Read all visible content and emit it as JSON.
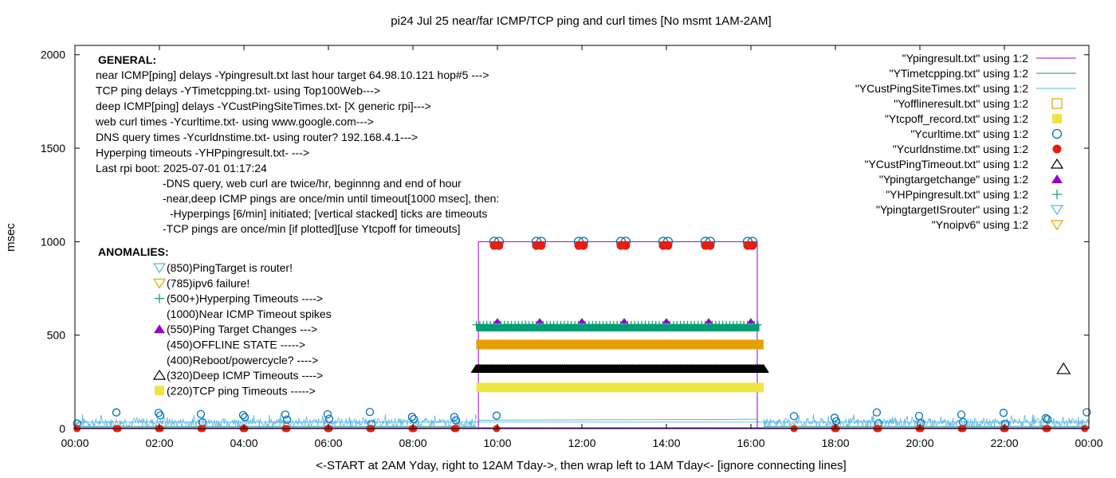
{
  "chart_data": {
    "type": "line",
    "title": "pi24 Jul 25  near/far ICMP/TCP ping and curl times [No msmt 1AM-2AM]",
    "xlabel": "<-START at 2AM Yday, right to 12AM Tday->, then wrap left to 1AM Tday<- [ignore connecting lines]",
    "ylabel": "msec",
    "xlim": [
      0,
      24
    ],
    "ylim": [
      0,
      2050
    ],
    "x_ticks": [
      "00:00",
      "02:00",
      "04:00",
      "06:00",
      "08:00",
      "10:00",
      "12:00",
      "14:00",
      "16:00",
      "18:00",
      "20:00",
      "22:00",
      "00:00"
    ],
    "y_ticks": [
      0,
      500,
      1000,
      1500,
      2000
    ],
    "grid": false,
    "legend_position": "top-right",
    "legend": [
      {
        "label": "\"Ypingresult.txt\" using 1:2",
        "color": "#9400d3",
        "kind": "line"
      },
      {
        "label": "\"YTimetcpping.txt\" using 1:2",
        "color": "#009e73",
        "kind": "line"
      },
      {
        "label": "\"YCustPingSiteTimes.txt\" using 1:2",
        "color": "#56b4e9",
        "kind": "line"
      },
      {
        "label": "\"Yofflineresult.txt\" using 1:2",
        "color": "#e69f00",
        "kind": "square-open"
      },
      {
        "label": "\"Ytcpoff_record.txt\" using 1:2",
        "color": "#f0e442",
        "kind": "square-filled"
      },
      {
        "label": "\"Ycurltime.txt\" using 1:2",
        "color": "#0072b2",
        "kind": "circle-open"
      },
      {
        "label": "\"Ycurldnstime.txt\" using 1:2",
        "color": "#e51e10",
        "kind": "circle-filled"
      },
      {
        "label": "\"YCustPingTimeout.txt\" using 1:2",
        "color": "#000000",
        "kind": "triangle-open"
      },
      {
        "label": "\"Ypingtargetchange\" using 1:2",
        "color": "#9400d3",
        "kind": "triangle-filled"
      },
      {
        "label": "\"YHPpingresult.txt\" using 1:2",
        "color": "#009e73",
        "kind": "plus"
      },
      {
        "label": "\"YpingtargetISrouter\" using 1:2",
        "color": "#56b4e9",
        "kind": "triangle-down-open"
      },
      {
        "label": "\"Ynoipv6\" using 1:2",
        "color": "#e69f00",
        "kind": "triangle-down-open"
      }
    ],
    "series": [
      {
        "name": "\"Ycurltime.txt\" using 1:2",
        "x_hours": [
          9.98,
          10.98,
          11.98,
          12.98,
          13.98,
          14.98,
          15.98
        ],
        "y": [
          1000,
          1000,
          1000,
          1000,
          1000,
          1000,
          1000
        ]
      },
      {
        "name": "\"Ycurldnstime.txt\" using 1:2",
        "x_hours": [
          9.98,
          10.98,
          11.98,
          12.98,
          13.98,
          14.98,
          15.98
        ],
        "y": [
          980,
          980,
          980,
          980,
          980,
          980,
          980
        ]
      },
      {
        "name": "\"YTimetcpping.txt\" using 1:2",
        "x_range_hours": [
          9.5,
          16.2
        ],
        "y_range": [
          520,
          560
        ]
      },
      {
        "name": "\"Yofflineresult.txt\" using 1:2",
        "x_range_hours": [
          9.5,
          16.3
        ],
        "y": 450
      },
      {
        "name": "\"YCustPingTimeout.txt\" using 1:2",
        "x_range_hours": [
          9.5,
          16.3
        ],
        "y": 320
      },
      {
        "name": "\"Ytcpoff_record.txt\" using 1:2",
        "x_range_hours": [
          9.5,
          16.3
        ],
        "y": 220
      },
      {
        "name": "\"Ypingresult.txt\" using 1:2",
        "x_range_hours": [
          9.55,
          16.15
        ],
        "y": 1000
      },
      {
        "name": "\"YCustPingTimeout.txt\" using 1:2",
        "x_hours": [
          23.4
        ],
        "y": [
          320
        ]
      }
    ],
    "annotations": {
      "general_header": "GENERAL:",
      "general_lines": [
        "near ICMP[ping] delays -Ypingresult.txt last hour target 64.98.10.121 hop#5 --->",
        "TCP ping delays -YTimetcpping.txt- using Top100Web--->",
        "deep ICMP[ping] delays -YCustPingSiteTimes.txt- [X generic rpi]--->",
        "web curl times -Ycurltime.txt- using www.google.com--->",
        "DNS query times -Ycurldnstime.txt- using router? 192.168.4.1--->",
        "Hyperping timeouts -YHPpingresult.txt- --->",
        "Last rpi boot: 2025-07-01 01:17:24"
      ],
      "general_notes": [
        "-DNS query, web curl are twice/hr, beginnng and end of hour",
        "-near,deep ICMP pings are once/min until timeout[1000 msec], then:",
        "-Hyperpings [6/min] initiated; [vertical stacked] ticks are timeouts",
        "-TCP pings are once/min [if plotted][use Ytcpoff for timeouts]"
      ],
      "anomalies_header": "ANOMALIES:",
      "anomalies": [
        {
          "text": "(850)PingTarget is router!",
          "marker": "triangle-down-open",
          "color": "#56b4e9"
        },
        {
          "text": "(785)ipv6 failure!",
          "marker": "triangle-down-open",
          "color": "#e69f00"
        },
        {
          "text": "(500+)Hyperping Timeouts ---->",
          "marker": "plus",
          "color": "#009e73"
        },
        {
          "text": "(1000)Near ICMP Timeout spikes",
          "marker": "",
          "color": ""
        },
        {
          "text": "(550)Ping Target Changes --->",
          "marker": "triangle-filled",
          "color": "#9400d3"
        },
        {
          "text": "(450)OFFLINE STATE ----->",
          "marker": "",
          "color": ""
        },
        {
          "text": "(400)Reboot/powercycle? ---->",
          "marker": "",
          "color": ""
        },
        {
          "text": "(320)Deep ICMP Timeouts ---->",
          "marker": "triangle-open",
          "color": "#000000"
        },
        {
          "text": "(220)TCP ping Timeouts ----->",
          "marker": "square-filled",
          "color": "#f0e442"
        }
      ]
    }
  }
}
